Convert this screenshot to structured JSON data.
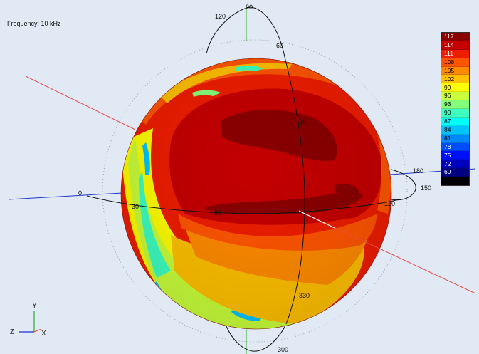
{
  "frequency_label": "Frequency: 10 kHz",
  "colorbar": {
    "levels": [
      {
        "label": "117",
        "color": "#8a0000"
      },
      {
        "label": "114",
        "color": "#c40000"
      },
      {
        "label": "111",
        "color": "#ee1d00"
      },
      {
        "label": "108",
        "color": "#ff5500"
      },
      {
        "label": "105",
        "color": "#ff8a00"
      },
      {
        "label": "102",
        "color": "#ffc000"
      },
      {
        "label": "99",
        "color": "#ffff00"
      },
      {
        "label": "96",
        "color": "#c9ff3a"
      },
      {
        "label": "93",
        "color": "#84ff7c"
      },
      {
        "label": "90",
        "color": "#3dffc0"
      },
      {
        "label": "87",
        "color": "#00ffff"
      },
      {
        "label": "84",
        "color": "#00c4ff"
      },
      {
        "label": "81",
        "color": "#0088ff"
      },
      {
        "label": "78",
        "color": "#004cff"
      },
      {
        "label": "75",
        "color": "#0010ff"
      },
      {
        "label": "72",
        "color": "#0000c0"
      },
      {
        "label": "69",
        "color": "#000080"
      },
      {
        "label": "",
        "color": "#000000"
      }
    ]
  },
  "angle_labels": {
    "top_ring": [
      "120",
      "90",
      "60",
      "30",
      "330",
      "300"
    ],
    "horizontal_ring": [
      "0",
      "30",
      "60",
      "120",
      "150",
      "180"
    ]
  },
  "triad": {
    "y": "Y",
    "z": "Z",
    "x": "X"
  },
  "colors": {
    "background": "#e1eaf4",
    "x_axis_line": "#e84a4a",
    "y_axis_line": "#2aa82a",
    "z_axis_line": "#2233cc",
    "ring": "#111111"
  }
}
